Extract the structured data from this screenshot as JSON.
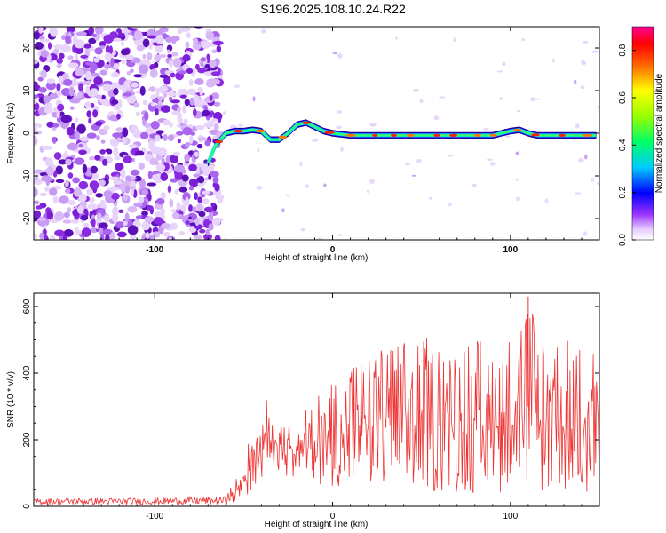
{
  "title": "S196.2025.108.10.24.R22",
  "chart_data": [
    {
      "type": "heatmap",
      "xlabel": "Height of straight line (km)",
      "ylabel": "Frequency (Hz)",
      "xlim": [
        -168,
        150
      ],
      "ylim": [
        -25,
        25
      ],
      "xticks": [
        -100,
        0,
        100
      ],
      "yticks": [
        -20,
        -10,
        0,
        10,
        20
      ],
      "colorbar": {
        "label": "Normalized spectral amplitude",
        "range": [
          0,
          0.9
        ],
        "ticks": [
          "0.0",
          "0.2",
          "0.4",
          "0.6",
          "0.8"
        ]
      },
      "ridge": {
        "x": [
          -70,
          -66,
          -60,
          -55,
          -50,
          -45,
          -40,
          -35,
          -30,
          -25,
          -20,
          -15,
          -10,
          -5,
          0,
          10,
          20,
          30,
          40,
          50,
          60,
          70,
          80,
          90,
          95,
          100,
          105,
          110,
          115,
          120,
          130,
          140,
          148
        ],
        "y": [
          -7,
          -3,
          0,
          0.5,
          0.5,
          0.8,
          0.5,
          -1.5,
          -1.5,
          0,
          2,
          2.5,
          1.5,
          0.5,
          0,
          -0.5,
          -0.5,
          -0.5,
          -0.5,
          -0.5,
          -0.5,
          -0.5,
          -0.5,
          -0.5,
          0,
          0.5,
          0.8,
          0,
          -0.5,
          -0.5,
          -0.5,
          -0.5,
          -0.5
        ]
      },
      "noise_region_x": [
        -168,
        -63
      ]
    },
    {
      "type": "line",
      "xlabel": "Height of straight line (km)",
      "ylabel": "SNR (10 * v/v)",
      "xlim": [
        -168,
        150
      ],
      "ylim": [
        0,
        640
      ],
      "xticks": [
        -100,
        0,
        100
      ],
      "yticks": [
        0,
        200,
        400,
        600
      ],
      "color": "#ee3333",
      "envelope": {
        "x": [
          -168,
          -110,
          -60,
          -55,
          -50,
          -45,
          -40,
          -35,
          -30,
          -20,
          -10,
          0,
          10,
          20,
          30,
          40,
          60,
          80,
          100,
          110,
          120,
          130,
          150
        ],
        "low": [
          5,
          5,
          5,
          10,
          20,
          40,
          80,
          120,
          100,
          80,
          60,
          60,
          60,
          60,
          50,
          50,
          40,
          40,
          40,
          40,
          40,
          40,
          40
        ],
        "high": [
          25,
          25,
          30,
          80,
          150,
          230,
          310,
          330,
          310,
          280,
          330,
          380,
          430,
          460,
          480,
          500,
          510,
          510,
          510,
          630,
          510,
          500,
          510
        ]
      }
    }
  ]
}
